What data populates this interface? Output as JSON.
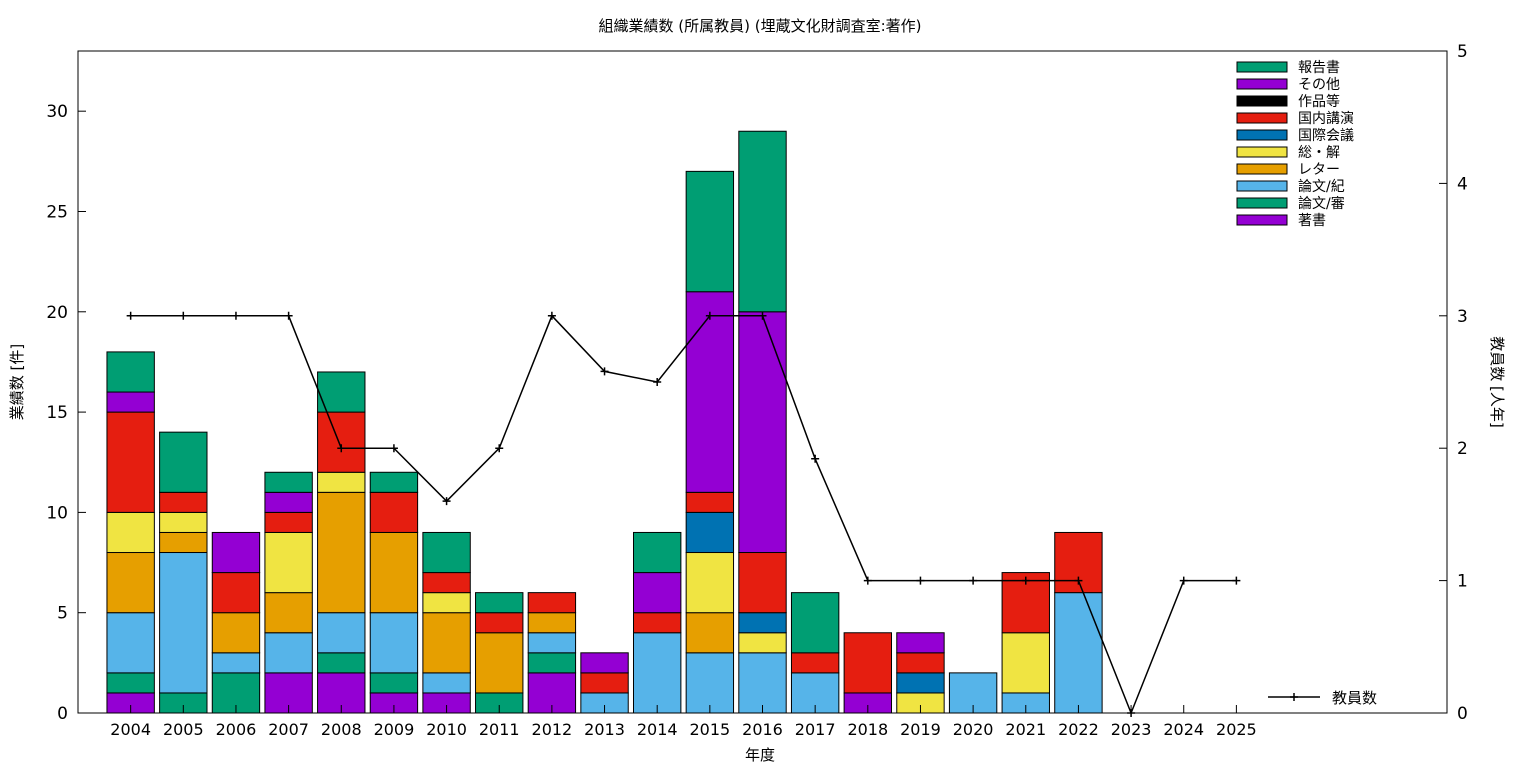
{
  "chart_data": {
    "type": "bar",
    "stacked": true,
    "title": "組織業績数 (所属教員) (埋蔵文化財調査室:著作)",
    "xlabel": "年度",
    "ylabel": "業績数 [件]",
    "y2label": "教員数 [人年]",
    "ylim": [
      0,
      33
    ],
    "y2lim": [
      0,
      5
    ],
    "yticks": [
      0,
      5,
      10,
      15,
      20,
      25,
      30
    ],
    "y2ticks": [
      0,
      1,
      2,
      3,
      4,
      5
    ],
    "grid": false,
    "legend_position": "top-right",
    "categories": [
      "2004",
      "2005",
      "2006",
      "2007",
      "2008",
      "2009",
      "2010",
      "2011",
      "2012",
      "2013",
      "2014",
      "2015",
      "2016",
      "2017",
      "2018",
      "2019",
      "2020",
      "2021",
      "2022",
      "2023",
      "2024",
      "2025"
    ],
    "series": [
      {
        "name": "著書",
        "color": "#9400d3",
        "values": [
          1,
          0,
          0,
          2,
          2,
          1,
          1,
          0,
          2,
          0,
          0,
          0,
          0,
          0,
          1,
          0,
          0,
          0,
          0,
          0,
          0,
          0
        ]
      },
      {
        "name": "論文/審",
        "color": "#009e73",
        "values": [
          1,
          1,
          2,
          0,
          1,
          1,
          0,
          1,
          1,
          0,
          0,
          0,
          0,
          0,
          0,
          0,
          0,
          0,
          0,
          0,
          0,
          0
        ]
      },
      {
        "name": "論文/紀",
        "color": "#56b4e9",
        "values": [
          3,
          7,
          1,
          2,
          2,
          3,
          1,
          0,
          1,
          1,
          4,
          3,
          3,
          2,
          0,
          0,
          2,
          1,
          6,
          0,
          0,
          0
        ]
      },
      {
        "name": "レター",
        "color": "#e69f00",
        "values": [
          3,
          1,
          2,
          2,
          6,
          4,
          3,
          3,
          1,
          0,
          0,
          2,
          0,
          0,
          0,
          0,
          0,
          0,
          0,
          0,
          0,
          0
        ]
      },
      {
        "name": "総・解",
        "color": "#f0e442",
        "values": [
          2,
          1,
          0,
          3,
          1,
          0,
          1,
          0,
          0,
          0,
          0,
          3,
          1,
          0,
          0,
          1,
          0,
          3,
          0,
          0,
          0,
          0
        ]
      },
      {
        "name": "国際会議",
        "color": "#0072b2",
        "values": [
          0,
          0,
          0,
          0,
          0,
          0,
          0,
          0,
          0,
          0,
          0,
          2,
          1,
          0,
          0,
          1,
          0,
          0,
          0,
          0,
          0,
          0
        ]
      },
      {
        "name": "国内講演",
        "color": "#e51e10",
        "values": [
          5,
          1,
          2,
          1,
          3,
          2,
          1,
          1,
          1,
          1,
          1,
          1,
          3,
          1,
          3,
          1,
          0,
          3,
          3,
          0,
          0,
          0
        ]
      },
      {
        "name": "作品等",
        "color": "#000000",
        "values": [
          0,
          0,
          0,
          0,
          0,
          0,
          0,
          0,
          0,
          0,
          0,
          0,
          0,
          0,
          0,
          0,
          0,
          0,
          0,
          0,
          0,
          0
        ]
      },
      {
        "name": "その他",
        "color": "#9400d3",
        "values": [
          1,
          0,
          2,
          1,
          0,
          0,
          0,
          0,
          0,
          1,
          2,
          10,
          12,
          0,
          0,
          1,
          0,
          0,
          0,
          0,
          0,
          0
        ]
      },
      {
        "name": "報告書",
        "color": "#009e73",
        "values": [
          2,
          3,
          0,
          1,
          2,
          1,
          2,
          1,
          0,
          0,
          2,
          6,
          9,
          3,
          0,
          0,
          0,
          0,
          0,
          0,
          0,
          0
        ]
      }
    ],
    "line_series": {
      "name": "教員数",
      "axis": "y2",
      "color": "#000000",
      "values": [
        3,
        3,
        3,
        3,
        2,
        2,
        1.6,
        2,
        3,
        2.58,
        2.5,
        3,
        3,
        1.92,
        1,
        1,
        1,
        1,
        1,
        0,
        1,
        1
      ]
    }
  }
}
